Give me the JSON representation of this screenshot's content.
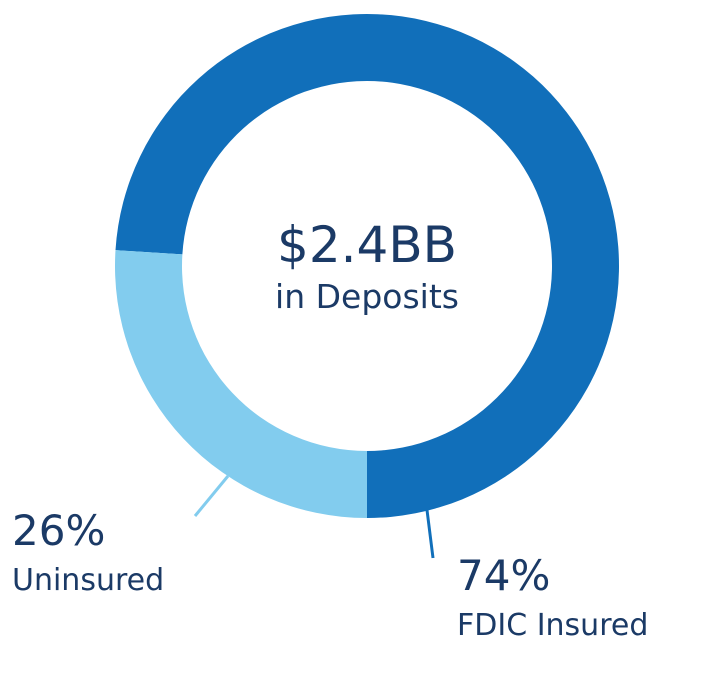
{
  "chart_data": {
    "type": "pie",
    "title": "$2.4BB",
    "subtitle": "in Deposits",
    "categories": [
      "Uninsured",
      "FDIC Insured"
    ],
    "values": [
      26,
      74
    ],
    "value_labels": [
      "26%",
      "74%"
    ],
    "colors": [
      "#82ccee",
      "#116fba"
    ]
  }
}
